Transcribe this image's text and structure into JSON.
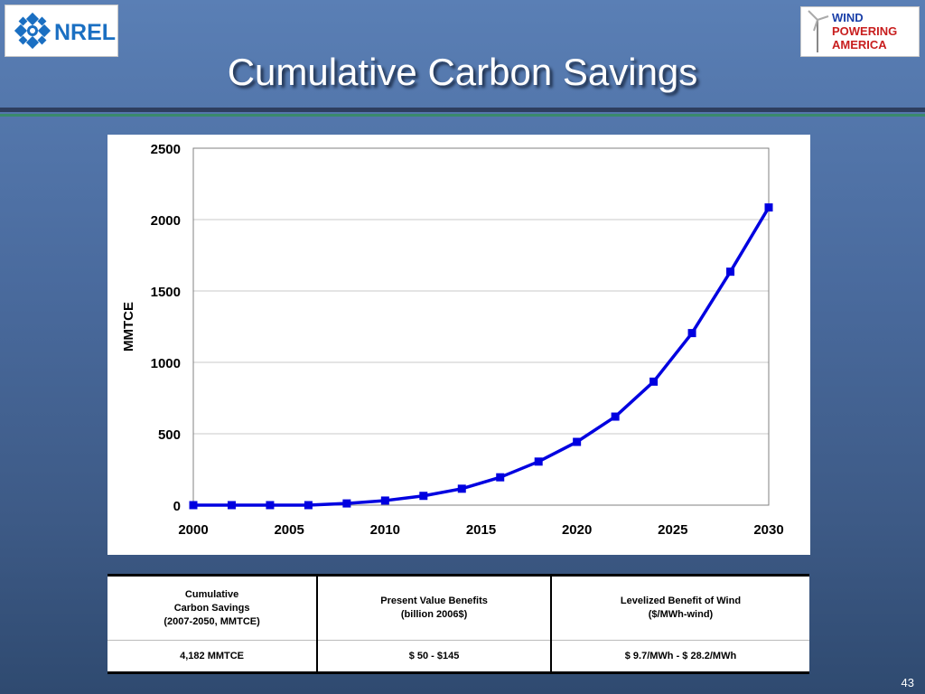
{
  "header": {
    "title": "Cumulative Carbon Savings",
    "nrel_logo_text": "NREL",
    "wpa_logo_lines": [
      "WIND",
      "POWERING",
      "AMERICA"
    ]
  },
  "colors": {
    "series": "#0000e0",
    "background_top": "#5a7fb5",
    "background_bottom": "#2f4a70"
  },
  "chart_data": {
    "type": "line",
    "title": "",
    "xlabel": "",
    "ylabel": "MMTCE",
    "xlim": [
      2000,
      2030
    ],
    "ylim": [
      0,
      2500
    ],
    "xticks": [
      "2000",
      "2005",
      "2010",
      "2015",
      "2020",
      "2025",
      "2030"
    ],
    "yticks": [
      "0",
      "500",
      "1000",
      "1500",
      "2000",
      "2500"
    ],
    "grid": true,
    "legend": "none",
    "x": [
      2000,
      2002,
      2004,
      2006,
      2008,
      2010,
      2012,
      2014,
      2016,
      2018,
      2020,
      2022,
      2024,
      2026,
      2028,
      2030
    ],
    "series": [
      {
        "values": [
          0,
          0,
          0,
          0,
          12,
          32,
          65,
          115,
          195,
          305,
          443,
          620,
          865,
          1205,
          1635,
          2085
        ]
      }
    ]
  },
  "table": {
    "headers": [
      "Cumulative\nCarbon Savings\n(2007-2050, MMTCE)",
      "Present Value Benefits\n(billion 2006$)",
      "Levelized Benefit of Wind\n($/MWh-wind)"
    ],
    "values": [
      "4,182 MMTCE",
      "$ 50 - $145",
      "$ 9.7/MWh - $ 28.2/MWh"
    ]
  },
  "footer": {
    "page_number": "43"
  }
}
